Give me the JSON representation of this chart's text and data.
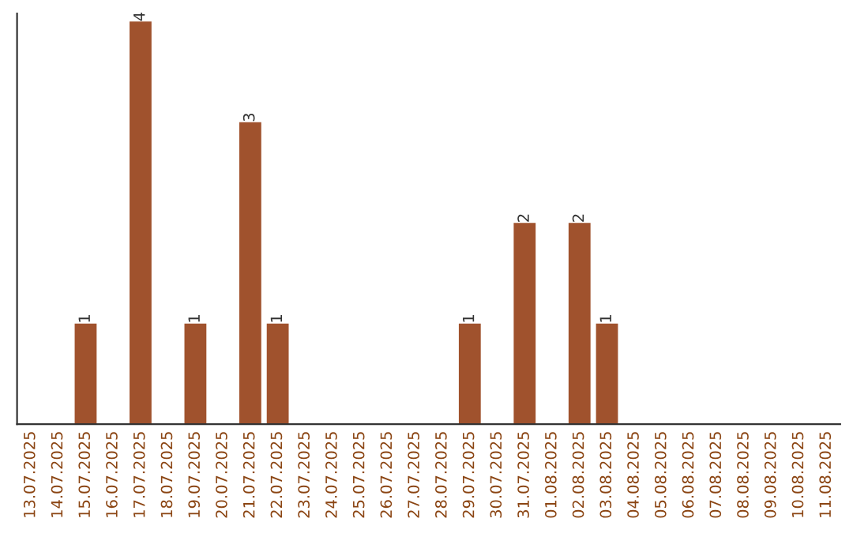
{
  "chart_data": {
    "type": "bar",
    "categories": [
      "13.07.2025",
      "14.07.2025",
      "15.07.2025",
      "16.07.2025",
      "17.07.2025",
      "18.07.2025",
      "19.07.2025",
      "20.07.2025",
      "21.07.2025",
      "22.07.2025",
      "23.07.2025",
      "24.07.2025",
      "25.07.2025",
      "26.07.2025",
      "27.07.2025",
      "28.07.2025",
      "29.07.2025",
      "30.07.2025",
      "31.07.2025",
      "01.08.2025",
      "02.08.2025",
      "03.08.2025",
      "04.08.2025",
      "05.08.2025",
      "06.08.2025",
      "07.08.2025",
      "08.08.2025",
      "09.08.2025",
      "10.08.2025",
      "11.08.2025"
    ],
    "values": [
      0,
      0,
      1,
      0,
      4,
      0,
      1,
      0,
      3,
      1,
      0,
      0,
      0,
      0,
      0,
      0,
      1,
      0,
      2,
      0,
      2,
      1,
      0,
      0,
      0,
      0,
      0,
      0,
      0,
      0
    ],
    "value_labels": [
      null,
      null,
      "1",
      null,
      "4",
      null,
      "1",
      null,
      "3",
      "1",
      null,
      null,
      null,
      null,
      null,
      null,
      "1",
      null,
      "2",
      null,
      "2",
      "1",
      null,
      null,
      null,
      null,
      null,
      null,
      null,
      null
    ],
    "color": "#a0522d",
    "grid": false,
    "legend": false
  }
}
